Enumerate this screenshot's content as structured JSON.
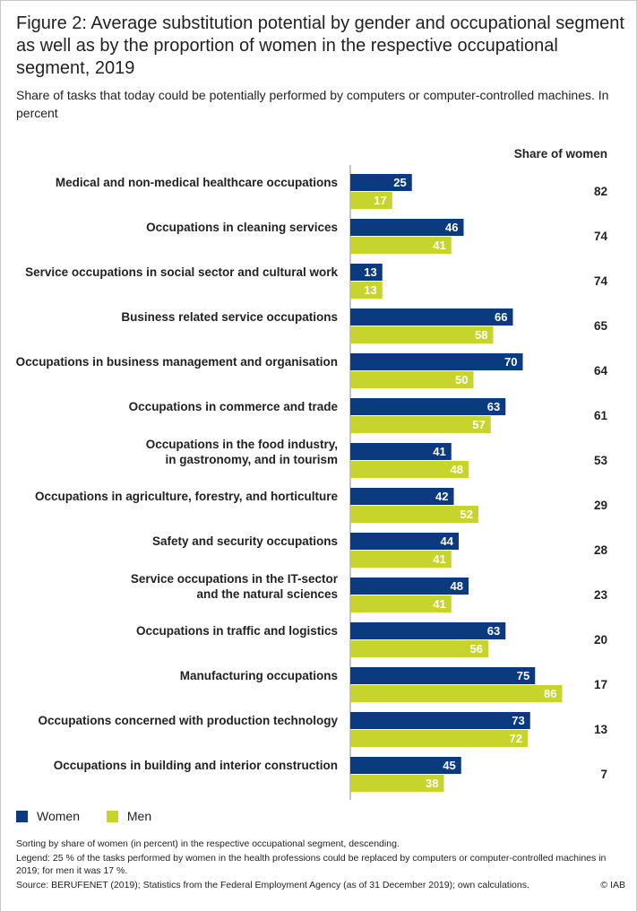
{
  "header": {
    "title": "Figure 2: Average substitution potential by gender and occupational segment as well as by the proportion of women in the respective occupational segment, 2019",
    "subtitle": "Share of tasks that today could be potentially performed by computers or computer-controlled machines. In percent",
    "share_header": "Share of women"
  },
  "colors": {
    "women": "#0b3a7e",
    "men": "#c8d42e",
    "women_label": "#ffffff",
    "men_label": "#ffffff"
  },
  "legend": {
    "women": "Women",
    "men": "Men"
  },
  "chart_data": {
    "type": "bar",
    "orientation": "horizontal",
    "categories": [
      [
        "Medical and non-medical healthcare occupations"
      ],
      [
        "Occupations in cleaning services"
      ],
      [
        "Service occupations in social sector and cultural work"
      ],
      [
        "Business related service occupations"
      ],
      [
        "Occupations in business management and organisation"
      ],
      [
        "Occupations in commerce and trade"
      ],
      [
        "Occupations in the food industry,",
        "in gastronomy, and in tourism"
      ],
      [
        "Occupations in agriculture, forestry, and horticulture"
      ],
      [
        "Safety and security occupations"
      ],
      [
        "Service occupations in the IT-sector",
        "and the natural sciences"
      ],
      [
        "Occupations in traffic and logistics"
      ],
      [
        "Manufacturing occupations"
      ],
      [
        "Occupations concerned with production technology"
      ],
      [
        "Occupations in building and interior construction"
      ]
    ],
    "series": [
      {
        "name": "Women",
        "values": [
          25,
          46,
          13,
          66,
          70,
          63,
          41,
          42,
          44,
          48,
          63,
          75,
          73,
          45
        ]
      },
      {
        "name": "Men",
        "values": [
          17,
          41,
          13,
          58,
          50,
          57,
          48,
          52,
          41,
          41,
          56,
          86,
          72,
          38
        ]
      }
    ],
    "share_of_women": [
      82,
      74,
      74,
      65,
      64,
      61,
      53,
      29,
      28,
      23,
      20,
      17,
      13,
      7
    ],
    "xlim": [
      0,
      100
    ],
    "data_labels": true,
    "legend_position": "bottom-left"
  },
  "notes": {
    "sorting": "Sorting by share of women (in percent) in the respective occupational segment, descending.",
    "legend_note": "Legend: 25 % of the tasks performed by women in the health professions could be replaced by computers or computer-controlled machines in 2019; for men it was 17 %.",
    "source": "Source: BERUFENET (2019); Statistics from the Federal Employment Agency (as of 31 December 2019); own calculations.",
    "copyright": "© IAB"
  }
}
